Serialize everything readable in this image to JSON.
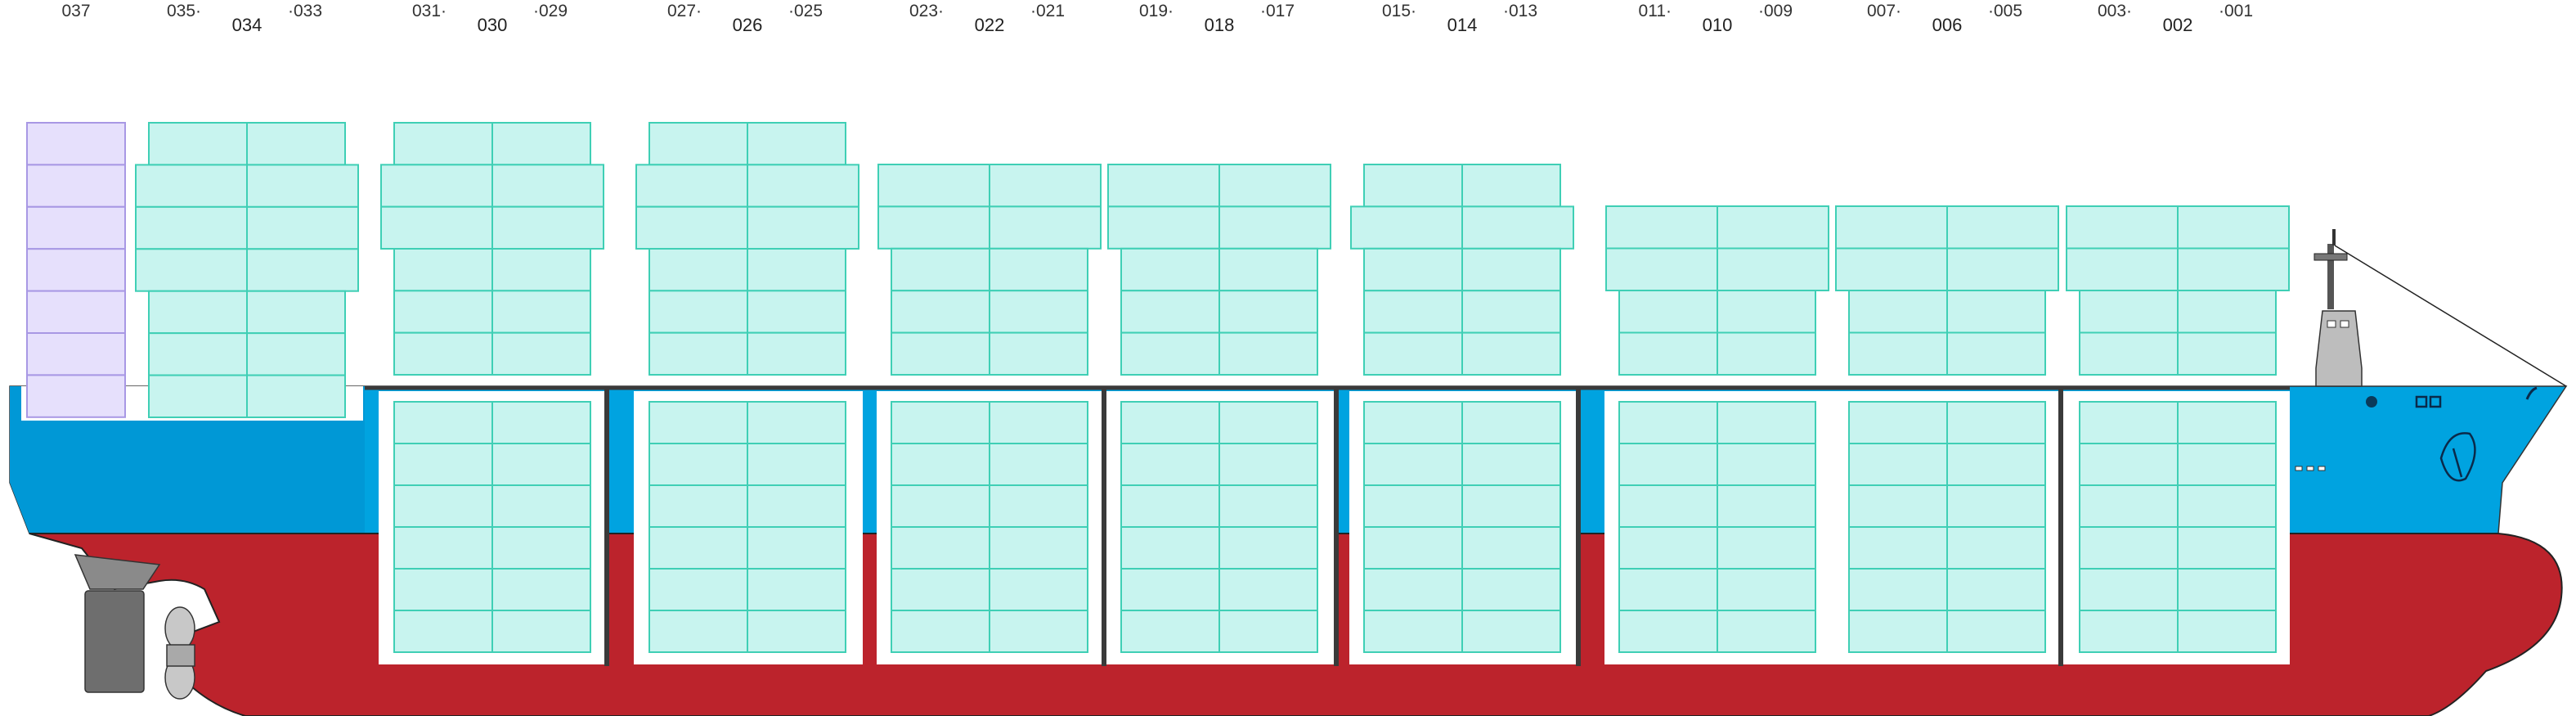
{
  "bays": [
    {
      "main": "",
      "left": "037",
      "right": ""
    },
    {
      "main": "034",
      "left": "035",
      "right": "033"
    },
    {
      "main": "030",
      "left": "031",
      "right": "029"
    },
    {
      "main": "026",
      "left": "027",
      "right": "025"
    },
    {
      "main": "022",
      "left": "023",
      "right": "021"
    },
    {
      "main": "018",
      "left": "019",
      "right": "017"
    },
    {
      "main": "014",
      "left": "015",
      "right": "013"
    },
    {
      "main": "010",
      "left": "011",
      "right": "009"
    },
    {
      "main": "006",
      "left": "007",
      "right": "005"
    },
    {
      "main": "002",
      "left": "003",
      "right": "001"
    }
  ],
  "colors": {
    "hull_upper": "#00a3e0",
    "hull_upper_dark": "#0095d0",
    "hull_lower": "#bc232c",
    "container_fill": "#c8f4ef",
    "container_stroke": "#3fcfb5",
    "reefer_fill": "#e6e0fc",
    "reefer_stroke": "#a898e4",
    "hatch": "#3a3a3a"
  }
}
